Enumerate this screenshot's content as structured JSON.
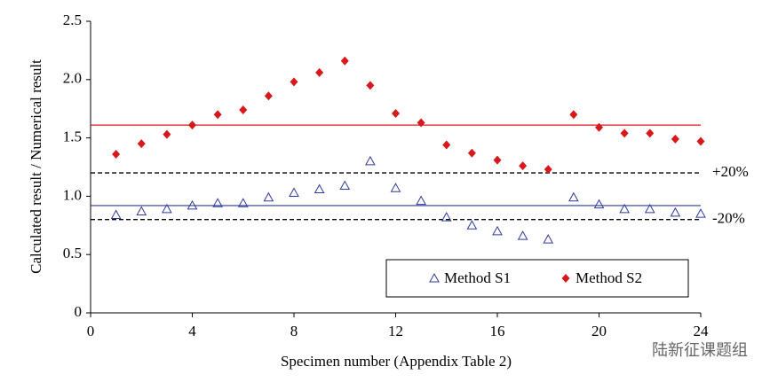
{
  "chart_data": {
    "type": "scatter",
    "x_label": "Specimen number (Appendix Table 2)",
    "y_label": "Calculated result / Numerical result",
    "x": [
      1,
      2,
      3,
      4,
      5,
      6,
      7,
      8,
      9,
      10,
      11,
      12,
      13,
      14,
      15,
      16,
      17,
      18,
      19,
      20,
      21,
      22,
      23,
      24
    ],
    "series": [
      {
        "name": "Method S1",
        "color": "#2e3a9e",
        "marker": "triangle",
        "values": [
          0.84,
          0.87,
          0.89,
          0.92,
          0.94,
          0.94,
          0.99,
          1.03,
          1.06,
          1.09,
          1.3,
          1.07,
          0.96,
          0.82,
          0.75,
          0.7,
          0.66,
          0.63,
          0.99,
          0.93,
          0.89,
          0.89,
          0.86,
          0.85
        ]
      },
      {
        "name": "Method S2",
        "color": "#d7191c",
        "marker": "diamond",
        "values": [
          1.36,
          1.45,
          1.53,
          1.61,
          1.7,
          1.74,
          1.86,
          1.98,
          2.06,
          2.16,
          1.95,
          1.71,
          1.63,
          1.44,
          1.37,
          1.31,
          1.26,
          1.23,
          1.7,
          1.59,
          1.54,
          1.54,
          1.49,
          1.47
        ]
      }
    ],
    "mean_lines": [
      {
        "value": 1.61,
        "color": "#d7191c"
      },
      {
        "value": 0.92,
        "color": "#2e3a9e"
      }
    ],
    "bound_lines": [
      {
        "value": 1.2,
        "label": "+20%"
      },
      {
        "value": 0.8,
        "label": "-20%"
      }
    ],
    "xlim": [
      0,
      24
    ],
    "xticks": [
      0,
      4,
      8,
      12,
      16,
      20,
      24
    ],
    "ylim": [
      0,
      2.5
    ],
    "yticks": [
      0,
      0.5,
      {
        "value": 1,
        "label": "1.0"
      },
      1.5,
      {
        "value": 2,
        "label": "2.0"
      },
      2.5
    ],
    "legend": "bottom-right",
    "watermark": "陆新征课题组"
  }
}
